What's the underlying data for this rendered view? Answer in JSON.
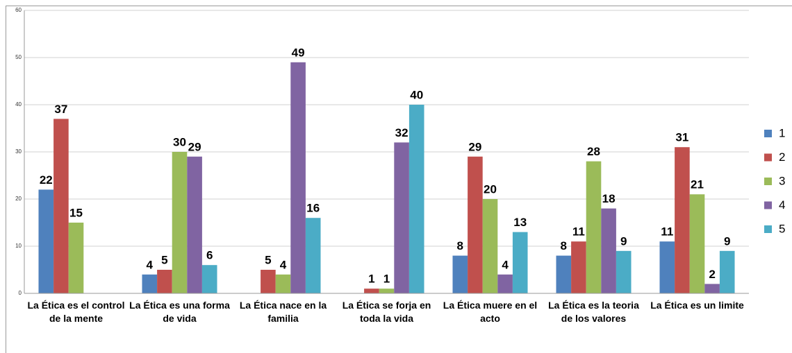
{
  "chart_data": {
    "type": "bar",
    "categories": [
      "La Ética es el control de la mente",
      "La Ética es una forma de vida",
      "La Ética nace en la familia",
      "La Ética se forja en toda la vida",
      "La Ética muere en el acto",
      "La Ética es la teoria de los valores",
      "La Ética es un limite"
    ],
    "series": [
      {
        "name": "1",
        "color": "#4f81bd",
        "values": [
          22,
          4,
          null,
          null,
          8,
          8,
          11
        ]
      },
      {
        "name": "2",
        "color": "#c0504d",
        "values": [
          37,
          5,
          5,
          1,
          29,
          11,
          31
        ]
      },
      {
        "name": "3",
        "color": "#9bbb59",
        "values": [
          15,
          30,
          4,
          1,
          20,
          28,
          21
        ]
      },
      {
        "name": "4",
        "color": "#8064a2",
        "values": [
          null,
          29,
          49,
          32,
          4,
          18,
          2
        ]
      },
      {
        "name": "5",
        "color": "#4bacc6",
        "values": [
          null,
          6,
          16,
          40,
          13,
          9,
          9
        ]
      }
    ],
    "ylim": [
      0,
      60
    ],
    "yticks": [
      0,
      10,
      20,
      30,
      40,
      50,
      60
    ],
    "grid": true,
    "legend": "right"
  }
}
